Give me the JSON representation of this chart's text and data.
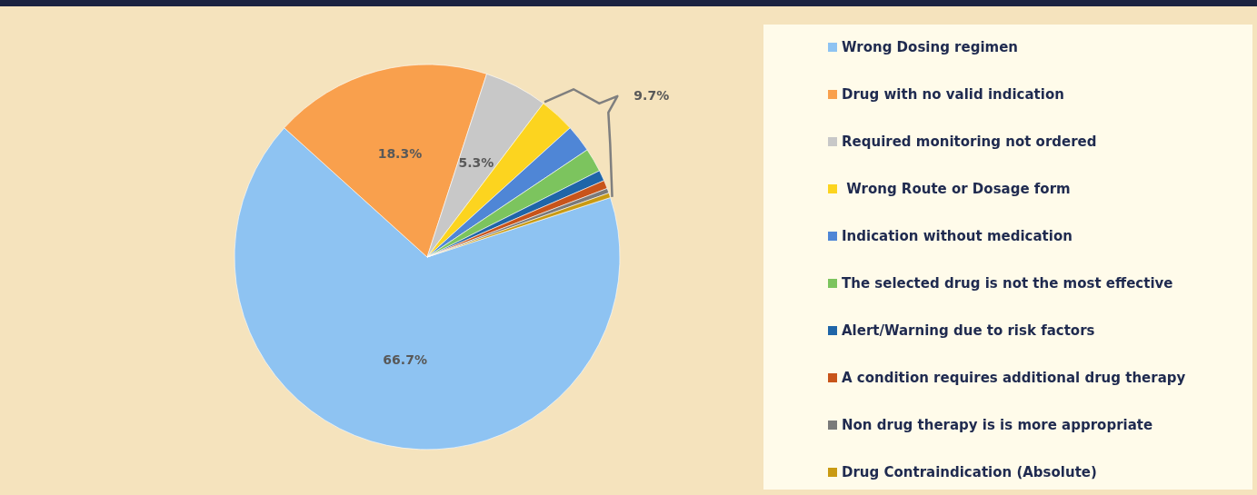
{
  "chart_data": {
    "type": "pie",
    "categories": [
      "Wrong Dosing regimen",
      "Drug with no valid indication",
      "Required monitoring not ordered",
      " Wrong Route or Dosage form",
      "Indication without medication",
      "The selected drug is not the most effective",
      "Alert/Warning due to risk factors",
      "A condition requires additional drug therapy",
      "Non drug therapy is is more appropriate",
      "Drug Contraindication (Absolute)"
    ],
    "values": [
      66.7,
      18.3,
      5.3,
      3.0,
      2.3,
      2.0,
      0.9,
      0.7,
      0.4,
      0.4
    ],
    "colors": [
      "#8ec3f2",
      "#f9a04d",
      "#c8c8c8",
      "#fcd41f",
      "#4f86d6",
      "#7cc45e",
      "#1f65a8",
      "#c8541a",
      "#7a7a7a",
      "#c99a12"
    ],
    "value_labels": [
      "66.7%",
      "18.3%",
      "5.3%",
      null,
      null,
      null,
      null,
      null,
      null,
      null
    ],
    "annotations": [
      "9.7%"
    ],
    "legend": "right"
  }
}
